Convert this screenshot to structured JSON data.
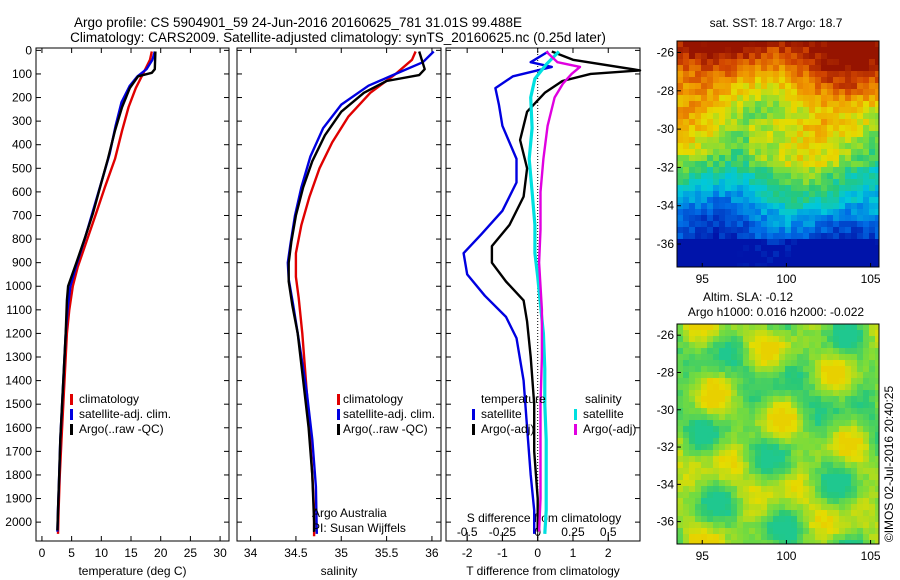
{
  "header": {
    "line1": "Argo profile: CS 5904901_59 24-Jun-2016 20160625_781 31.01S 99.488E",
    "line2": "Climatology: CARS2009. Satellite-adjusted climatology: synTS_20160625.nc (0.25d later)"
  },
  "colors": {
    "climatology": "#e00000",
    "satellite": "#0000e0",
    "argo": "#000000",
    "salinity_satellite": "#00e0e0",
    "salinity_argo": "#e000e0"
  },
  "chart_data": [
    {
      "type": "line",
      "name": "temperature-profile",
      "xlabel": "temperature (deg C)",
      "ylabel": "",
      "xlim": [
        -1,
        31.5
      ],
      "ylim": [
        2080,
        -10
      ],
      "xticks": [
        "0",
        "5",
        "10",
        "15",
        "20",
        "25",
        "30"
      ],
      "xtick_values": [
        0,
        5,
        10,
        15,
        20,
        25,
        30
      ],
      "yticks": [
        "0",
        "100",
        "200",
        "300",
        "400",
        "500",
        "600",
        "700",
        "800",
        "900",
        "1000",
        "1100",
        "1200",
        "1300",
        "1400",
        "1500",
        "1600",
        "1700",
        "1800",
        "1900",
        "2000"
      ],
      "ytick_values": [
        0,
        100,
        200,
        300,
        400,
        500,
        600,
        700,
        800,
        900,
        1000,
        1100,
        1200,
        1300,
        1400,
        1500,
        1600,
        1700,
        1800,
        1900,
        2000
      ],
      "legend": [
        "climatology",
        "satellite-adj. clim.",
        "Argo(..raw -QC)"
      ],
      "series": [
        {
          "name": "climatology",
          "points": [
            [
              18.5,
              5
            ],
            [
              18.2,
              40
            ],
            [
              17.2,
              90
            ],
            [
              15.8,
              160
            ],
            [
              14.6,
              240
            ],
            [
              13.5,
              340
            ],
            [
              12.3,
              460
            ],
            [
              10.6,
              580
            ],
            [
              9.0,
              700
            ],
            [
              7.5,
              810
            ],
            [
              6.0,
              920
            ],
            [
              5.2,
              1000
            ],
            [
              4.6,
              1100
            ],
            [
              4.2,
              1200
            ],
            [
              3.9,
              1350
            ],
            [
              3.6,
              1500
            ],
            [
              3.3,
              1650
            ],
            [
              3.0,
              1800
            ],
            [
              2.8,
              1950
            ],
            [
              2.7,
              2050
            ]
          ]
        },
        {
          "name": "satellite-adj. clim.",
          "points": [
            [
              19.0,
              5
            ],
            [
              18.6,
              40
            ],
            [
              17.6,
              80
            ],
            [
              16.1,
              110
            ],
            [
              14.8,
              150
            ],
            [
              13.4,
              220
            ],
            [
              12.4,
              320
            ],
            [
              11.4,
              440
            ],
            [
              10.0,
              560
            ],
            [
              8.6,
              680
            ],
            [
              7.2,
              800
            ],
            [
              5.8,
              910
            ],
            [
              4.8,
              1000
            ],
            [
              4.3,
              1100
            ],
            [
              4.0,
              1200
            ],
            [
              3.7,
              1350
            ],
            [
              3.4,
              1500
            ],
            [
              3.1,
              1650
            ],
            [
              2.9,
              1800
            ],
            [
              2.7,
              1950
            ],
            [
              2.6,
              2040
            ]
          ]
        },
        {
          "name": "Argo(..raw -QC)",
          "points": [
            [
              19.1,
              5
            ],
            [
              19.0,
              80
            ],
            [
              18.5,
              95
            ],
            [
              16.2,
              110
            ],
            [
              14.8,
              160
            ],
            [
              13.5,
              240
            ],
            [
              12.3,
              340
            ],
            [
              11.1,
              460
            ],
            [
              9.8,
              580
            ],
            [
              8.6,
              690
            ],
            [
              7.3,
              790
            ],
            [
              5.8,
              900
            ],
            [
              4.4,
              1000
            ],
            [
              4.2,
              1060
            ],
            [
              4.0,
              1200
            ],
            [
              3.7,
              1350
            ],
            [
              3.4,
              1500
            ],
            [
              3.1,
              1650
            ],
            [
              2.9,
              1800
            ],
            [
              2.7,
              1950
            ],
            [
              2.6,
              2035
            ]
          ]
        }
      ]
    },
    {
      "type": "line",
      "name": "salinity-profile",
      "xlabel": "salinity",
      "ylabel": "",
      "xlim": [
        33.85,
        36.1
      ],
      "ylim": [
        2080,
        -10
      ],
      "xticks": [
        "34",
        "34.5",
        "35",
        "35.5",
        "36"
      ],
      "xtick_values": [
        34,
        34.5,
        35,
        35.5,
        36
      ],
      "legend": [
        "climatology",
        "satellite-adj. clim.",
        "Argo(..raw -QC)"
      ],
      "annotations": [
        "Argo Australia",
        "PI: Susan Wijffels"
      ],
      "series": [
        {
          "name": "climatology",
          "points": [
            [
              35.82,
              5
            ],
            [
              35.78,
              40
            ],
            [
              35.6,
              100
            ],
            [
              35.32,
              180
            ],
            [
              35.08,
              280
            ],
            [
              34.9,
              390
            ],
            [
              34.76,
              500
            ],
            [
              34.65,
              620
            ],
            [
              34.56,
              740
            ],
            [
              34.5,
              860
            ],
            [
              34.5,
              960
            ],
            [
              34.53,
              1050
            ],
            [
              34.57,
              1200
            ],
            [
              34.61,
              1400
            ],
            [
              34.65,
              1600
            ],
            [
              34.68,
              1800
            ],
            [
              34.7,
              1950
            ],
            [
              34.7,
              2060
            ]
          ]
        },
        {
          "name": "satellite-adj. clim.",
          "points": [
            [
              36.02,
              5
            ],
            [
              35.9,
              50
            ],
            [
              35.6,
              100
            ],
            [
              35.3,
              150
            ],
            [
              35.0,
              230
            ],
            [
              34.8,
              330
            ],
            [
              34.66,
              450
            ],
            [
              34.56,
              580
            ],
            [
              34.49,
              700
            ],
            [
              34.44,
              820
            ],
            [
              34.41,
              900
            ],
            [
              34.42,
              970
            ],
            [
              34.47,
              1080
            ],
            [
              34.54,
              1250
            ],
            [
              34.62,
              1450
            ],
            [
              34.68,
              1650
            ],
            [
              34.72,
              1850
            ],
            [
              34.73,
              2050
            ]
          ]
        },
        {
          "name": "Argo(..raw -QC)",
          "points": [
            [
              35.86,
              5
            ],
            [
              35.9,
              55
            ],
            [
              35.92,
              80
            ],
            [
              35.86,
              105
            ],
            [
              35.5,
              130
            ],
            [
              35.25,
              180
            ],
            [
              35.0,
              260
            ],
            [
              34.82,
              360
            ],
            [
              34.68,
              470
            ],
            [
              34.58,
              580
            ],
            [
              34.5,
              700
            ],
            [
              34.45,
              810
            ],
            [
              34.42,
              900
            ],
            [
              34.42,
              980
            ],
            [
              34.46,
              1080
            ],
            [
              34.52,
              1200
            ],
            [
              34.58,
              1400
            ],
            [
              34.64,
              1600
            ],
            [
              34.68,
              1800
            ],
            [
              34.7,
              2000
            ],
            [
              34.7,
              2040
            ]
          ]
        }
      ]
    },
    {
      "type": "line",
      "name": "difference-profile",
      "xlabel": "T difference from climatology",
      "x2label": "S difference from climatology",
      "xlim": [
        -2.6,
        2.9
      ],
      "x2lim": [
        -0.65,
        0.725
      ],
      "ylim": [
        2080,
        -10
      ],
      "xticks": [
        "-2",
        "-1",
        "0",
        "1",
        "2"
      ],
      "xtick_values": [
        -2,
        -1,
        0,
        1,
        2
      ],
      "x2ticks": [
        "-0.5",
        "-0.25",
        "0",
        "0.25",
        "0.5"
      ],
      "x2tick_values": [
        -0.5,
        -0.25,
        0,
        0.25,
        0.5
      ],
      "legend_titles": [
        "temperature",
        "salinity"
      ],
      "legend": [
        "satellite",
        "Argo(-adj)",
        "satellite",
        "Argo(-adj)"
      ],
      "series": [
        {
          "name": "temperature satellite",
          "axis": "T",
          "points": [
            [
              0.3,
              5
            ],
            [
              -0.2,
              50
            ],
            [
              0.4,
              70
            ],
            [
              -0.7,
              110
            ],
            [
              -1.2,
              160
            ],
            [
              -1.1,
              230
            ],
            [
              -1.0,
              320
            ],
            [
              -0.6,
              460
            ],
            [
              -0.6,
              560
            ],
            [
              -1.0,
              680
            ],
            [
              -1.6,
              780
            ],
            [
              -2.1,
              860
            ],
            [
              -2.0,
              950
            ],
            [
              -1.5,
              1040
            ],
            [
              -0.9,
              1130
            ],
            [
              -0.6,
              1220
            ],
            [
              -0.4,
              1400
            ],
            [
              -0.3,
              1600
            ],
            [
              -0.2,
              1800
            ],
            [
              -0.1,
              1950
            ],
            [
              -0.1,
              2050
            ]
          ]
        },
        {
          "name": "temperature Argo(-adj)",
          "axis": "T",
          "points": [
            [
              0.4,
              5
            ],
            [
              1.0,
              40
            ],
            [
              2.9,
              85
            ],
            [
              1.5,
              100
            ],
            [
              0.7,
              130
            ],
            [
              0.2,
              180
            ],
            [
              -0.3,
              260
            ],
            [
              -0.5,
              380
            ],
            [
              -0.3,
              500
            ],
            [
              -0.4,
              620
            ],
            [
              -0.8,
              740
            ],
            [
              -1.3,
              830
            ],
            [
              -1.3,
              900
            ],
            [
              -0.9,
              980
            ],
            [
              -0.4,
              1060
            ],
            [
              -0.3,
              1150
            ],
            [
              -0.2,
              1300
            ],
            [
              -0.1,
              1500
            ],
            [
              -0.1,
              1700
            ],
            [
              0.0,
              1900
            ],
            [
              0.0,
              2040
            ]
          ]
        },
        {
          "name": "salinity satellite",
          "axis": "S",
          "points": [
            [
              0.15,
              5
            ],
            [
              0.06,
              60
            ],
            [
              -0.02,
              120
            ],
            [
              -0.05,
              200
            ],
            [
              -0.04,
              330
            ],
            [
              -0.06,
              460
            ],
            [
              -0.04,
              600
            ],
            [
              -0.02,
              740
            ],
            [
              -0.02,
              860
            ],
            [
              0.0,
              960
            ],
            [
              0.02,
              1080
            ],
            [
              0.04,
              1200
            ],
            [
              0.05,
              1350
            ],
            [
              0.05,
              1500
            ],
            [
              0.06,
              1650
            ],
            [
              0.06,
              1800
            ],
            [
              0.06,
              1950
            ],
            [
              0.05,
              2050
            ]
          ]
        },
        {
          "name": "salinity Argo(-adj)",
          "axis": "S",
          "points": [
            [
              0.06,
              5
            ],
            [
              0.14,
              50
            ],
            [
              0.3,
              70
            ],
            [
              0.24,
              100
            ],
            [
              0.18,
              140
            ],
            [
              0.12,
              200
            ],
            [
              0.07,
              320
            ],
            [
              0.04,
              460
            ],
            [
              0.02,
              600
            ],
            [
              0.02,
              760
            ],
            [
              0.01,
              900
            ],
            [
              0.02,
              1000
            ],
            [
              0.03,
              1100
            ],
            [
              0.03,
              1300
            ],
            [
              0.02,
              1500
            ],
            [
              0.02,
              1700
            ],
            [
              0.02,
              1900
            ],
            [
              0.01,
              2040
            ]
          ]
        }
      ]
    },
    {
      "type": "heatmap",
      "name": "sst-map",
      "title": "sat. SST: 18.7  Argo: 18.7",
      "xlim": [
        93.5,
        105.5
      ],
      "ylim": [
        -37.2,
        -25.4
      ],
      "xticks": [
        "95",
        "100",
        "105"
      ],
      "xtick_values": [
        95,
        100,
        105
      ],
      "yticks": [
        "-26",
        "-28",
        "-30",
        "-32",
        "-34",
        "-36"
      ],
      "ytick_values": [
        -26,
        -28,
        -30,
        -32,
        -34,
        -36
      ]
    },
    {
      "type": "heatmap",
      "name": "sla-map",
      "title_line1": "Altim. SLA: -0.12",
      "title_line2": "Argo h1000: 0.016 h2000: -0.022",
      "xlim": [
        93.5,
        105.5
      ],
      "ylim": [
        -37.2,
        -25.4
      ],
      "xticks": [
        "95",
        "100",
        "105"
      ],
      "xtick_values": [
        95,
        100,
        105
      ],
      "yticks": [
        "-26",
        "-28",
        "-30",
        "-32",
        "-34",
        "-36"
      ],
      "ytick_values": [
        -26,
        -28,
        -30,
        -32,
        -34,
        -36
      ]
    }
  ],
  "credit": "©IMOS 02-Jul-2016 20:40:25"
}
